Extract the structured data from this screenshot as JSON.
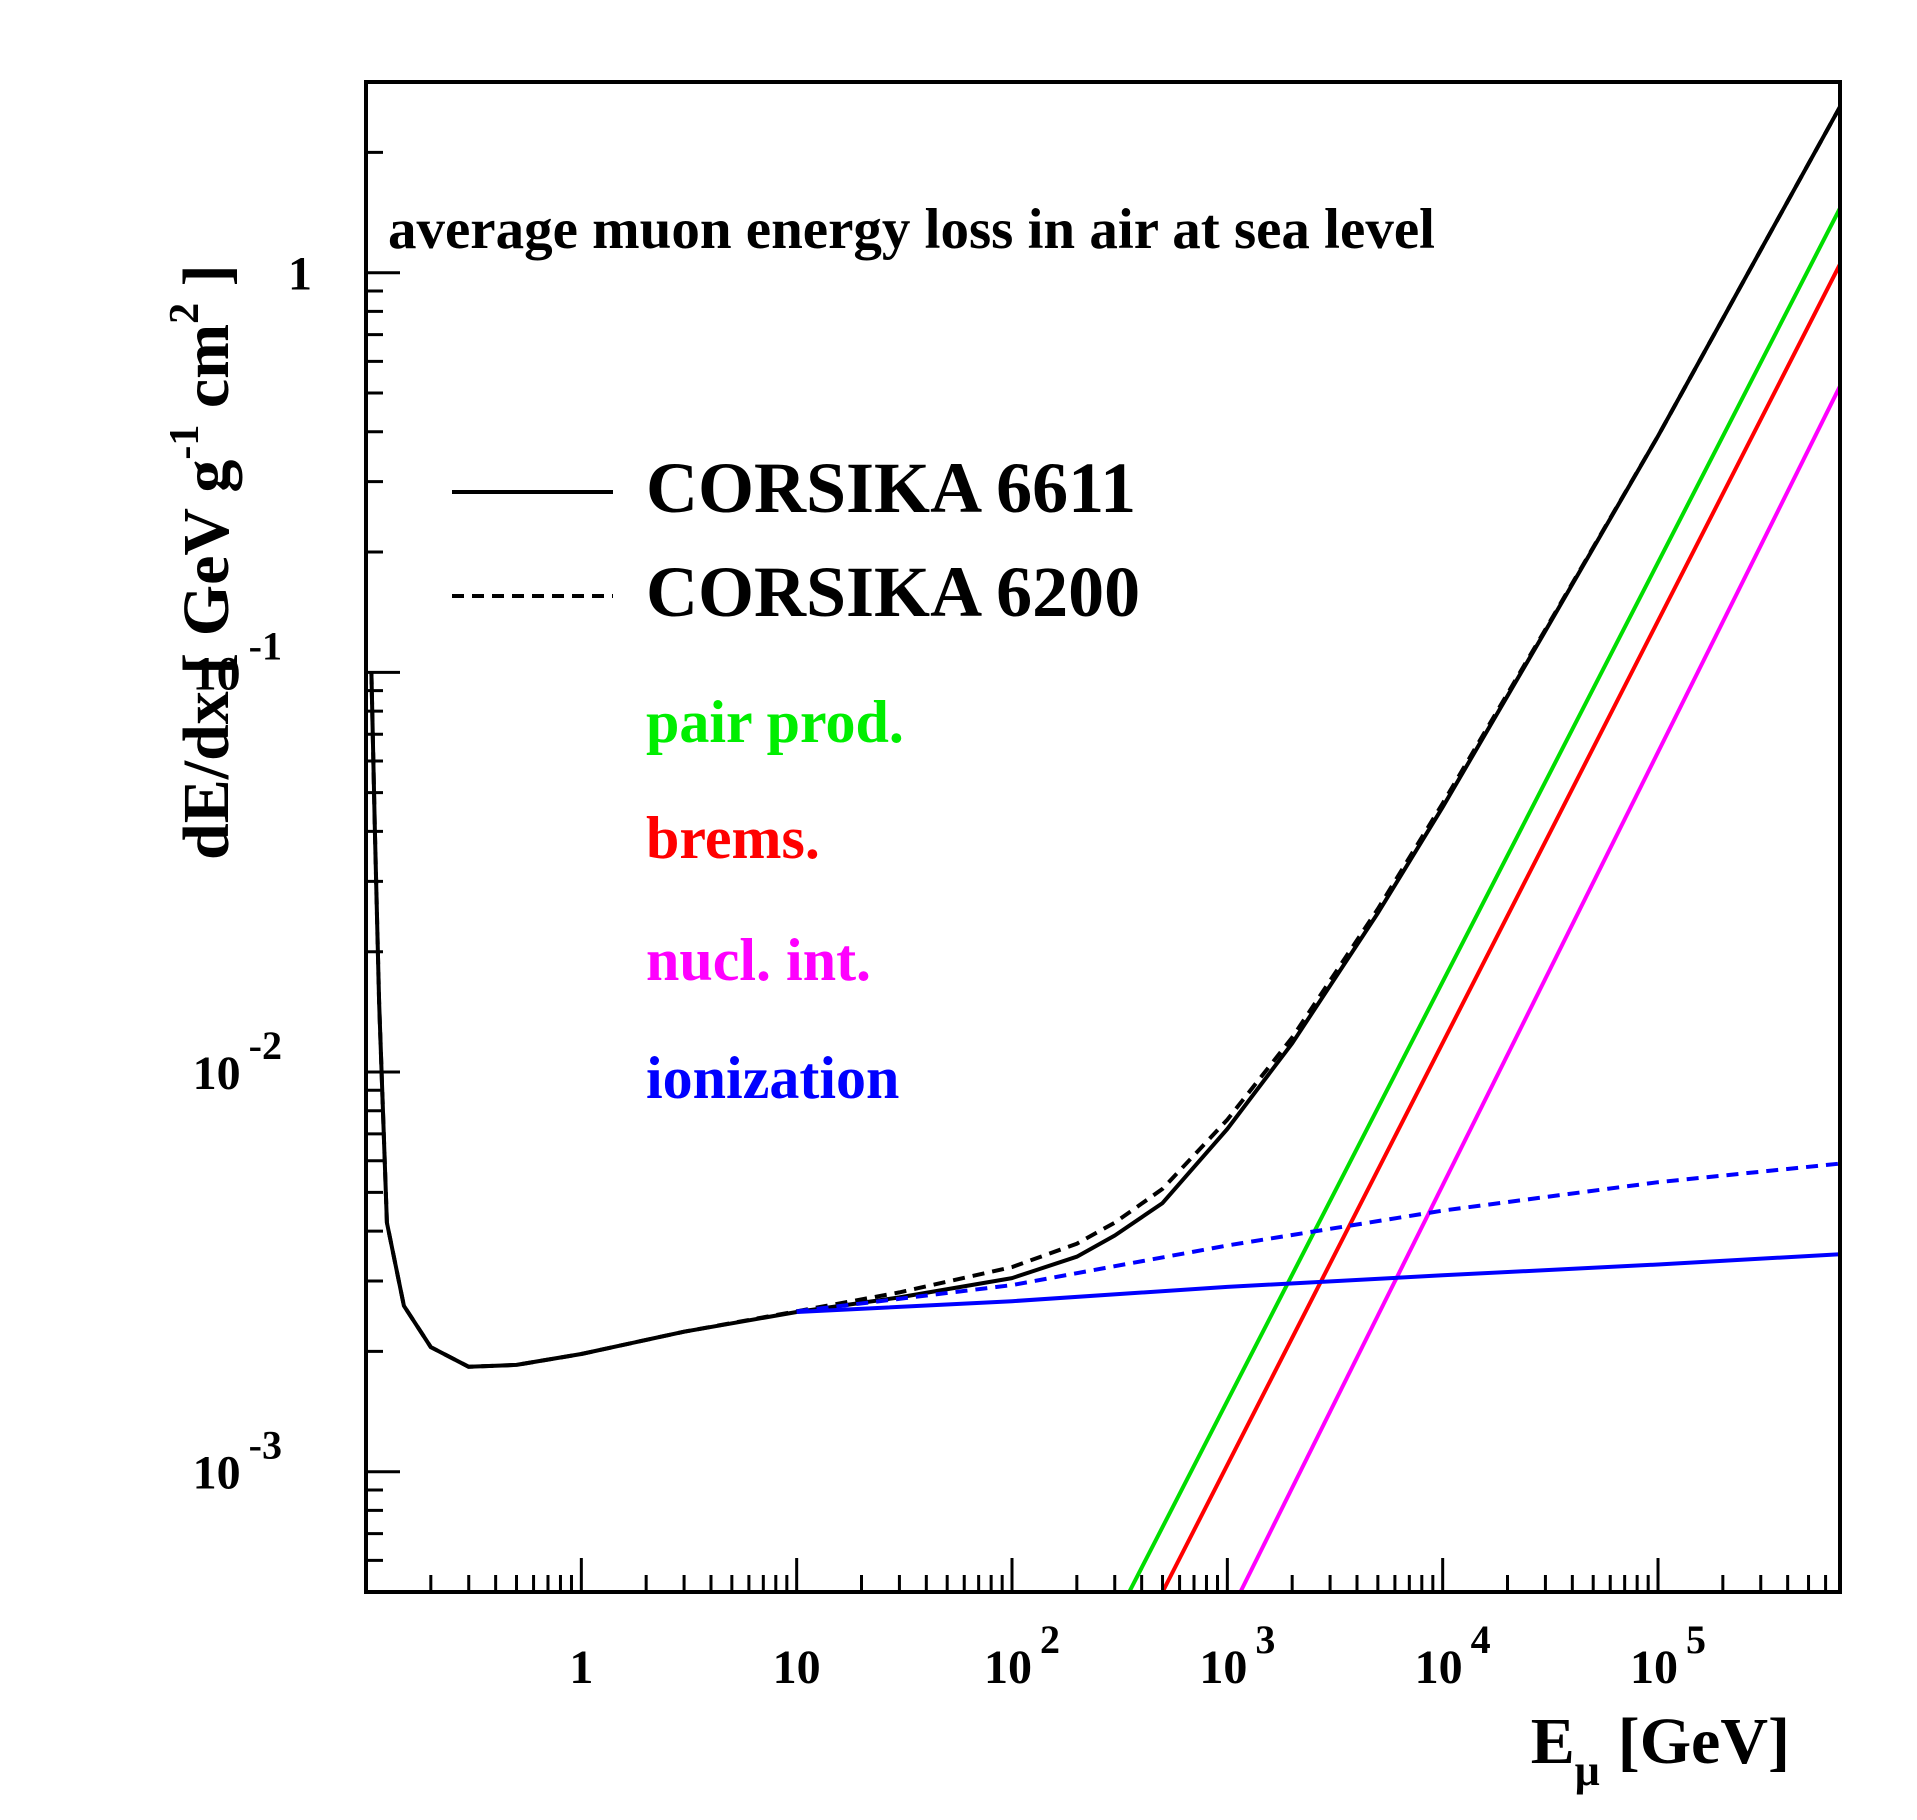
{
  "chart_data": {
    "type": "line",
    "title": "average muon energy loss in air at sea level",
    "xlabel": {
      "main": "E",
      "sub": "μ",
      "unit": "[GeV]"
    },
    "ylabel": {
      "parts": [
        "dE/dx [ GeV g",
        "-1",
        " cm",
        "2",
        " ]"
      ]
    },
    "x_scale": "log",
    "y_scale": "log",
    "xlim": [
      0.1,
      700000
    ],
    "ylim": [
      0.0005,
      3
    ],
    "x_ticks": [
      {
        "value": 1,
        "base": "1",
        "exp": ""
      },
      {
        "value": 10,
        "base": "10",
        "exp": ""
      },
      {
        "value": 100,
        "base": "10",
        "exp": "2"
      },
      {
        "value": 1000,
        "base": "10",
        "exp": "3"
      },
      {
        "value": 10000,
        "base": "10",
        "exp": "4"
      },
      {
        "value": 100000,
        "base": "10",
        "exp": "5"
      }
    ],
    "y_ticks": [
      {
        "value": 0.001,
        "base": "10",
        "exp": "-3"
      },
      {
        "value": 0.01,
        "base": "10",
        "exp": "-2"
      },
      {
        "value": 0.1,
        "base": "10",
        "exp": "-1"
      },
      {
        "value": 1,
        "base": "1",
        "exp": ""
      }
    ],
    "legend": [
      {
        "label": "CORSIKA 6611",
        "color": "#000000",
        "style": "solid",
        "sample": true
      },
      {
        "label": "CORSIKA 6200",
        "color": "#000000",
        "style": "dashed",
        "sample": true
      },
      {
        "label": "pair prod.",
        "color": "#00ee00",
        "style": "solid",
        "sample": false
      },
      {
        "label": "brems.",
        "color": "#ff0000",
        "style": "solid",
        "sample": false
      },
      {
        "label": "nucl. int.",
        "color": "#ff00ff",
        "style": "solid",
        "sample": false
      },
      {
        "label": "ionization",
        "color": "#0000ff",
        "style": "solid",
        "sample": false
      }
    ],
    "series": [
      {
        "name": "CORSIKA 6611",
        "color": "#000000",
        "style": "solid",
        "x": [
          0.106,
          0.11,
          0.115,
          0.125,
          0.15,
          0.2,
          0.3,
          0.5,
          1,
          3,
          10,
          30,
          100,
          200,
          300,
          500,
          1000,
          2000,
          5000,
          10000,
          30000,
          100000,
          300000,
          700000
        ],
        "y": [
          0.1,
          0.04,
          0.015,
          0.0042,
          0.0026,
          0.00205,
          0.00183,
          0.00185,
          0.00197,
          0.00224,
          0.00251,
          0.00273,
          0.00305,
          0.00345,
          0.0039,
          0.0047,
          0.0072,
          0.0118,
          0.025,
          0.046,
          0.127,
          0.39,
          1.14,
          2.6
        ]
      },
      {
        "name": "CORSIKA 6200",
        "color": "#000000",
        "style": "dashed",
        "x": [
          0.106,
          0.11,
          0.115,
          0.125,
          0.15,
          0.2,
          0.3,
          0.5,
          1,
          3,
          10,
          30,
          100,
          200,
          300,
          500,
          1000,
          2000,
          5000,
          10000,
          30000,
          100000,
          300000,
          700000
        ],
        "y": [
          0.1,
          0.04,
          0.015,
          0.0042,
          0.0026,
          0.00205,
          0.00183,
          0.00185,
          0.00197,
          0.00224,
          0.00252,
          0.00281,
          0.00325,
          0.00372,
          0.0042,
          0.0051,
          0.0076,
          0.0122,
          0.0256,
          0.047,
          0.128,
          0.39,
          1.14,
          2.6
        ]
      },
      {
        "name": "pair prod.",
        "color": "#00dd00",
        "style": "solid",
        "x": [
          350,
          700000
        ],
        "y": [
          0.0005,
          1.45
        ]
      },
      {
        "name": "brems.",
        "color": "#ff0000",
        "style": "solid",
        "x": [
          500,
          700000
        ],
        "y": [
          0.0005,
          1.05
        ]
      },
      {
        "name": "nucl. int.",
        "color": "#ff00ff",
        "style": "solid",
        "x": [
          1150,
          700000
        ],
        "y": [
          0.0005,
          0.52
        ]
      },
      {
        "name": "ionization",
        "color": "#0000ff",
        "style": "solid",
        "x": [
          10,
          100,
          1000,
          10000,
          100000,
          700000
        ],
        "y": [
          0.00251,
          0.00267,
          0.0029,
          0.0031,
          0.0033,
          0.0035
        ]
      },
      {
        "name": "ionization (dashed)",
        "color": "#0000ff",
        "style": "dashed",
        "x": [
          10,
          100,
          1000,
          10000,
          100000,
          700000
        ],
        "y": [
          0.00252,
          0.00293,
          0.00368,
          0.0045,
          0.0053,
          0.0059
        ]
      }
    ]
  }
}
